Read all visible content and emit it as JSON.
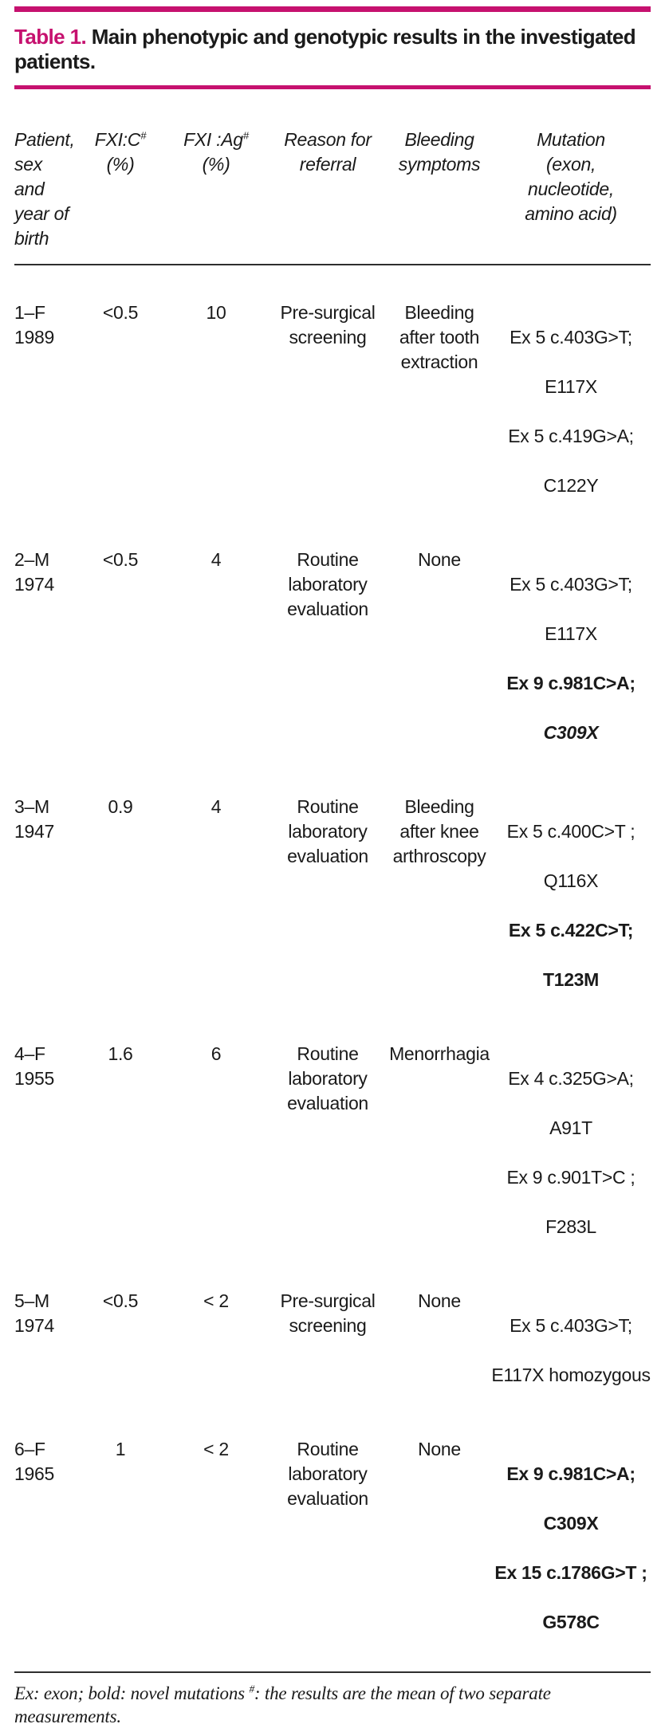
{
  "colors": {
    "accent": "#C6116F",
    "text": "#1A1A1A",
    "rule": "#2E2E2E"
  },
  "title": {
    "label": "Table 1.",
    "caption": " Main phenotypic and genotypic results in the investigated patients."
  },
  "table": {
    "headers": {
      "patient": "Patient,\nsex and\nyear of\nbirth",
      "fxic": {
        "name": "FXI:C",
        "sup": "#",
        "unit": "(%)"
      },
      "fxiag": {
        "name": "FXI :Ag",
        "sup": "#",
        "unit": "(%)"
      },
      "reason": "Reason for\nreferral",
      "symptoms": "Bleeding\nsymptoms",
      "mutation": "Mutation\n(exon,\nnucleotide,\namino acid)"
    },
    "rows": [
      {
        "patient": "1–F\n1989",
        "fxic": "<0.5",
        "fxiag": "10",
        "reason": "Pre-surgical\nscreening",
        "symptoms": "Bleeding\nafter tooth\nextraction",
        "mutations": [
          {
            "text": "Ex 5 c.403G>T;",
            "style": ""
          },
          {
            "text": "E117X",
            "style": ""
          },
          {
            "text": "Ex 5 c.419G>A;",
            "style": ""
          },
          {
            "text": "C122Y",
            "style": ""
          }
        ]
      },
      {
        "patient": "2–M\n1974",
        "fxic": "<0.5",
        "fxiag": "4",
        "reason": "Routine\nlaboratory\nevaluation",
        "symptoms": "None",
        "mutations": [
          {
            "text": "Ex 5 c.403G>T;",
            "style": ""
          },
          {
            "text": "E117X",
            "style": ""
          },
          {
            "text": "Ex 9 c.981C>A;",
            "style": "novel"
          },
          {
            "text": "C309X",
            "style": "novel-italic"
          }
        ]
      },
      {
        "patient": "3–M\n1947",
        "fxic": "0.9",
        "fxiag": "4",
        "reason": "Routine\nlaboratory\nevaluation",
        "symptoms": "Bleeding\nafter knee\narthroscopy",
        "mutations": [
          {
            "text": "Ex 5 c.400C>T ;",
            "style": ""
          },
          {
            "text": "Q116X",
            "style": ""
          },
          {
            "text": "Ex 5 c.422C>T;",
            "style": "novel"
          },
          {
            "text": "T123M",
            "style": "novel"
          }
        ]
      },
      {
        "patient": "4–F\n1955",
        "fxic": "1.6",
        "fxiag": "6",
        "reason": "Routine\nlaboratory\nevaluation",
        "symptoms": "Menorrhagia",
        "mutations": [
          {
            "text": "Ex 4 c.325G>A;",
            "style": ""
          },
          {
            "text": "A91T",
            "style": ""
          },
          {
            "text": "Ex 9 c.901T>C ;",
            "style": ""
          },
          {
            "text": "F283L",
            "style": ""
          }
        ]
      },
      {
        "patient": "5–M\n1974",
        "fxic": "<0.5",
        "fxiag": "< 2",
        "reason": "Pre-surgical\nscreening",
        "symptoms": "None",
        "mutations": [
          {
            "text": "Ex 5 c.403G>T;",
            "style": ""
          },
          {
            "text": "E117X homozygous",
            "style": ""
          }
        ]
      },
      {
        "patient": "6–F\n1965",
        "fxic": "1",
        "fxiag": "< 2",
        "reason": "Routine\nlaboratory\nevaluation",
        "symptoms": "None",
        "mutations": [
          {
            "text": "Ex 9 c.981C>A;",
            "style": "novel"
          },
          {
            "text": "C309X",
            "style": "novel"
          },
          {
            "text": "Ex 15 c.1786G>T ;",
            "style": "novel"
          },
          {
            "text": "G578C",
            "style": "novel"
          }
        ]
      }
    ]
  },
  "footnote": {
    "part1": "Ex: exon; bold: novel mutations ",
    "sup": "#",
    "part2": ": the results are the mean of two separate measurements."
  }
}
